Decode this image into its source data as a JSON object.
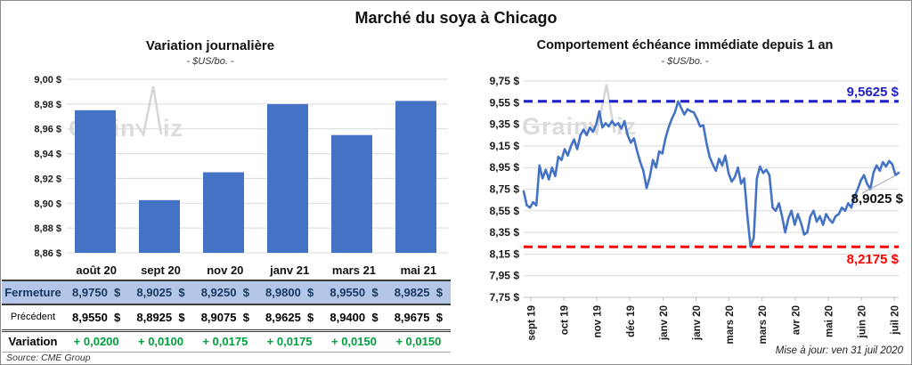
{
  "title": "Marché du soya à Chicago",
  "left_chart": {
    "title": "Variation  journalière",
    "subtitle": "- $US/bo. -",
    "watermark": "GrainWiz"
  },
  "right_chart": {
    "title": "Comportement  échéance immédiate depuis 1 an",
    "subtitle": "- $US/bo. -",
    "watermark": "GrainWiz"
  },
  "table": {
    "columns": [
      "août 20",
      "sept 20",
      "nov 20",
      "janv 21",
      "mars 21",
      "mai 21"
    ],
    "rows": [
      {
        "label": "Fermeture",
        "values": [
          "8,9750  $",
          "8,9025  $",
          "8,9250  $",
          "8,9800  $",
          "8,9550  $",
          "8,9825  $"
        ]
      },
      {
        "label": "Précédent",
        "values": [
          "8,9550  $",
          "8,8925  $",
          "8,9075  $",
          "8,9625  $",
          "8,9400  $",
          "8,9675  $"
        ]
      },
      {
        "label": "Variation",
        "values": [
          "+ 0,0200",
          "+ 0,0100",
          "+ 0,0175",
          "+ 0,0175",
          "+ 0,0150",
          "+ 0,0150"
        ]
      }
    ]
  },
  "source": "Source: CME Group",
  "updated": "Mise à jour: ven 31 juil 2020",
  "colors": {
    "bar": "#4472C4",
    "line": "#4472C4",
    "max_line": "#2121C8",
    "min_line": "#FF0000",
    "grid": "#D9D9D9",
    "axis": "#BFBFBF",
    "fermeture_bg": "#B4C6E7",
    "fermeture_text": "#17375E",
    "variation_text": "#00A03C",
    "watermark": "#D6D6D6",
    "leader": "#A6A6A6"
  },
  "chart_data": [
    {
      "type": "bar",
      "title": "Variation journalière",
      "unit": "$US/bo.",
      "categories": [
        "août 20",
        "sept 20",
        "nov 20",
        "janv 21",
        "mars 21",
        "mai 21"
      ],
      "values": [
        8.975,
        8.9025,
        8.925,
        8.98,
        8.955,
        8.9825
      ],
      "ylim": [
        8.86,
        9.0
      ],
      "tick_values": [
        8.86,
        8.88,
        8.9,
        8.92,
        8.94,
        8.96,
        8.98,
        9.0
      ],
      "tick_labels": [
        "8,86 $",
        "8,88 $",
        "8,90 $",
        "8,92 $",
        "8,94 $",
        "8,96 $",
        "8,98 $",
        "9,00 $"
      ],
      "grid": true
    },
    {
      "type": "line",
      "title": "Comportement échéance immédiate depuis 1 an",
      "unit": "$US/bo.",
      "x_labels": [
        "sept 19",
        "oct 19",
        "nov 19",
        "déc 19",
        "janv 20",
        "janv 20",
        "mars 20",
        "mars 20",
        "avr 20",
        "mai 20",
        "juin 20",
        "juil 20"
      ],
      "ylim": [
        7.75,
        9.75
      ],
      "tick_values": [
        7.75,
        7.95,
        8.15,
        8.35,
        8.55,
        8.75,
        8.95,
        9.15,
        9.35,
        9.55,
        9.75
      ],
      "tick_labels": [
        "7,75 $",
        "7,95 $",
        "8,15 $",
        "8,35 $",
        "8,55 $",
        "8,75 $",
        "8,95 $",
        "9,15 $",
        "9,35 $",
        "9,55 $",
        "9,75 $"
      ],
      "values": [
        8.73,
        8.6,
        8.58,
        8.63,
        8.6,
        8.97,
        8.85,
        8.93,
        8.84,
        8.95,
        8.87,
        9.05,
        9.02,
        9.12,
        9.06,
        9.15,
        9.21,
        9.12,
        9.25,
        9.3,
        9.25,
        9.32,
        9.28,
        9.35,
        9.47,
        9.32,
        9.36,
        9.33,
        9.38,
        9.34,
        9.36,
        9.31,
        9.38,
        9.25,
        9.18,
        9.22,
        9.1,
        9.0,
        8.92,
        8.76,
        8.86,
        9.02,
        8.95,
        9.1,
        9.08,
        9.22,
        9.32,
        9.4,
        9.46,
        9.5625,
        9.5,
        9.44,
        9.49,
        9.47,
        9.46,
        9.4,
        9.33,
        9.34,
        9.18,
        9.05,
        8.98,
        8.92,
        9.03,
        8.97,
        9.06,
        8.9,
        8.82,
        8.86,
        8.95,
        8.8,
        8.85,
        8.5,
        8.2175,
        8.3,
        8.85,
        8.96,
        8.9,
        8.93,
        8.88,
        8.58,
        8.55,
        8.62,
        8.5,
        8.35,
        8.48,
        8.55,
        8.42,
        8.52,
        8.44,
        8.33,
        8.35,
        8.5,
        8.55,
        8.45,
        8.5,
        8.42,
        8.52,
        8.47,
        8.44,
        8.5,
        8.52,
        8.58,
        8.55,
        8.62,
        8.58,
        8.68,
        8.75,
        8.83,
        8.88,
        8.8,
        8.75,
        8.9,
        8.97,
        8.92,
        9.0,
        8.96,
        9.01,
        8.98,
        8.88,
        8.9025
      ],
      "max_line": {
        "value": 9.5625,
        "label": "9,5625 $"
      },
      "min_line": {
        "value": 8.2175,
        "label": "8,2175 $"
      },
      "last_value_label": "8,9025 $",
      "legend": "none"
    }
  ]
}
